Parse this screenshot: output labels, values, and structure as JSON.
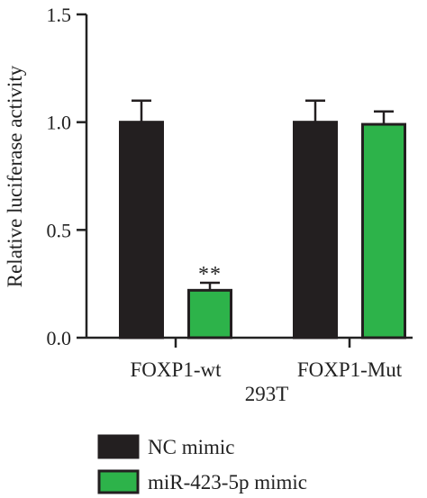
{
  "chart_data": {
    "type": "bar",
    "ylabel": "Relative luciferase activity",
    "xlabel": "293T",
    "ylim": [
      0,
      1.5
    ],
    "yticks": [
      "0.0",
      "0.5",
      "1.0",
      "1.5"
    ],
    "categories": [
      "FOXP1-wt",
      "FOXP1-Mut"
    ],
    "series": [
      {
        "name": "NC mimic",
        "color": "#231f20",
        "values": [
          1.0,
          1.0
        ],
        "errors": [
          0.1,
          0.1
        ]
      },
      {
        "name": "miR-423-5p mimic",
        "color": "#2db34a",
        "values": [
          0.22,
          0.99
        ],
        "errors": [
          0.035,
          0.06
        ]
      }
    ],
    "annotations": [
      {
        "category": "FOXP1-wt",
        "series": "miR-423-5p mimic",
        "text": "**"
      }
    ],
    "legend_position": "bottom-left",
    "grid": false
  }
}
